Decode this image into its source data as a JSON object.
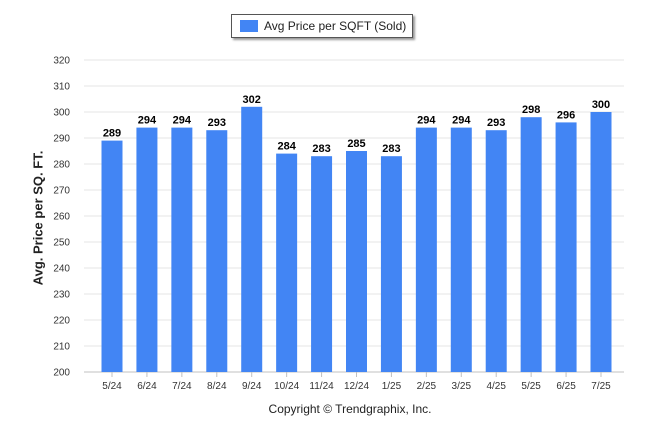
{
  "legend": {
    "label": "Avg Price per SQFT (Sold)",
    "color": "#4285f4"
  },
  "footer": {
    "copyright": "Copyright © Trendgraphix, Inc."
  },
  "chart_data": {
    "type": "bar",
    "title": "",
    "ylabel": "Avg. Price per SQ. FT.",
    "xlabel": "",
    "ylim": [
      200,
      320
    ],
    "ytick_step": 10,
    "grid": true,
    "legend_position": "top-center",
    "categories": [
      "5/24",
      "6/24",
      "7/24",
      "8/24",
      "9/24",
      "10/24",
      "11/24",
      "12/24",
      "1/25",
      "2/25",
      "3/25",
      "4/25",
      "5/25",
      "6/25",
      "7/25"
    ],
    "series": [
      {
        "name": "Avg Price per SQFT (Sold)",
        "color": "#4285f4",
        "values": [
          289,
          294,
          294,
          293,
          302,
          284,
          283,
          285,
          283,
          294,
          294,
          293,
          298,
          296,
          300
        ]
      }
    ]
  }
}
